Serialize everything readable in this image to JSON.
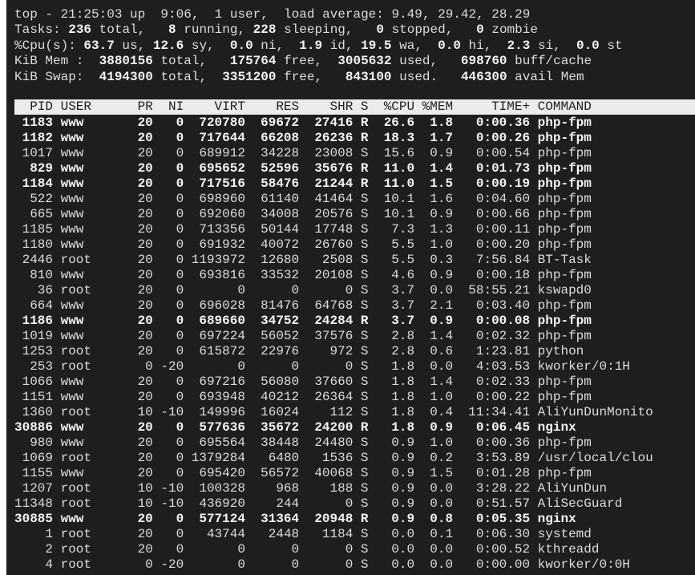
{
  "summary": {
    "line1": "top - 21:25:03 up  9:06,  1 user,  load average: 9.49, 29.42, 28.29",
    "line2": [
      [
        "Tasks: ",
        0
      ],
      [
        "236",
        1
      ],
      [
        " total,   ",
        0
      ],
      [
        "8",
        1
      ],
      [
        " running, ",
        0
      ],
      [
        "228",
        1
      ],
      [
        " sleeping,   ",
        0
      ],
      [
        "0",
        1
      ],
      [
        " stopped,   ",
        0
      ],
      [
        "0",
        1
      ],
      [
        " zombie",
        0
      ]
    ],
    "line3": [
      [
        "%Cpu(s): ",
        0
      ],
      [
        "63.7",
        1
      ],
      [
        " us, ",
        0
      ],
      [
        "12.6",
        1
      ],
      [
        " sy,  ",
        0
      ],
      [
        "0.0",
        1
      ],
      [
        " ni,  ",
        0
      ],
      [
        "1.9",
        1
      ],
      [
        " id, ",
        0
      ],
      [
        "19.5",
        1
      ],
      [
        " wa,  ",
        0
      ],
      [
        "0.0",
        1
      ],
      [
        " hi,  ",
        0
      ],
      [
        "2.3",
        1
      ],
      [
        " si,  ",
        0
      ],
      [
        "0.0",
        1
      ],
      [
        " st",
        0
      ]
    ],
    "line4": [
      [
        "KiB Mem :  ",
        0
      ],
      [
        "3880156",
        1
      ],
      [
        " total,   ",
        0
      ],
      [
        "175764",
        1
      ],
      [
        " free,  ",
        0
      ],
      [
        "3005632",
        1
      ],
      [
        " used,   ",
        0
      ],
      [
        "698760",
        1
      ],
      [
        " buff/cache",
        0
      ]
    ],
    "line5": [
      [
        "KiB Swap:  ",
        0
      ],
      [
        "4194300",
        1
      ],
      [
        " total,  ",
        0
      ],
      [
        "3351200",
        1
      ],
      [
        " free,   ",
        0
      ],
      [
        "843100",
        1
      ],
      [
        " used.   ",
        0
      ],
      [
        "446300",
        1
      ],
      [
        " avail Mem",
        0
      ]
    ]
  },
  "columns": [
    "PID",
    "USER",
    "PR",
    "NI",
    "VIRT",
    "RES",
    "SHR",
    "S",
    "%CPU",
    "%MEM",
    "TIME+",
    "COMMAND"
  ],
  "processes": [
    [
      "1183",
      "www",
      "20",
      "0",
      "720780",
      "69672",
      "27416",
      "R",
      "26.6",
      "1.8",
      "0:00.36",
      "php-fpm"
    ],
    [
      "1182",
      "www",
      "20",
      "0",
      "717644",
      "66208",
      "26236",
      "R",
      "18.3",
      "1.7",
      "0:00.26",
      "php-fpm"
    ],
    [
      "1017",
      "www",
      "20",
      "0",
      "689912",
      "34228",
      "23008",
      "S",
      "15.6",
      "0.9",
      "0:00.54",
      "php-fpm"
    ],
    [
      "829",
      "www",
      "20",
      "0",
      "695652",
      "52596",
      "35676",
      "R",
      "11.0",
      "1.4",
      "0:01.73",
      "php-fpm"
    ],
    [
      "1184",
      "www",
      "20",
      "0",
      "717516",
      "58476",
      "21244",
      "R",
      "11.0",
      "1.5",
      "0:00.19",
      "php-fpm"
    ],
    [
      "522",
      "www",
      "20",
      "0",
      "698960",
      "61140",
      "41464",
      "S",
      "10.1",
      "1.6",
      "0:04.60",
      "php-fpm"
    ],
    [
      "665",
      "www",
      "20",
      "0",
      "692060",
      "34008",
      "20576",
      "S",
      "10.1",
      "0.9",
      "0:00.66",
      "php-fpm"
    ],
    [
      "1185",
      "www",
      "20",
      "0",
      "713356",
      "50144",
      "17748",
      "S",
      "7.3",
      "1.3",
      "0:00.11",
      "php-fpm"
    ],
    [
      "1180",
      "www",
      "20",
      "0",
      "691932",
      "40072",
      "26760",
      "S",
      "5.5",
      "1.0",
      "0:00.20",
      "php-fpm"
    ],
    [
      "2446",
      "root",
      "20",
      "0",
      "1193972",
      "12680",
      "2508",
      "S",
      "5.5",
      "0.3",
      "7:56.84",
      "BT-Task"
    ],
    [
      "810",
      "www",
      "20",
      "0",
      "693816",
      "33532",
      "20108",
      "S",
      "4.6",
      "0.9",
      "0:00.18",
      "php-fpm"
    ],
    [
      "36",
      "root",
      "20",
      "0",
      "0",
      "0",
      "0",
      "S",
      "3.7",
      "0.0",
      "58:55.21",
      "kswapd0"
    ],
    [
      "664",
      "www",
      "20",
      "0",
      "696028",
      "81476",
      "64768",
      "S",
      "3.7",
      "2.1",
      "0:03.40",
      "php-fpm"
    ],
    [
      "1186",
      "www",
      "20",
      "0",
      "689660",
      "34752",
      "24284",
      "R",
      "3.7",
      "0.9",
      "0:00.08",
      "php-fpm"
    ],
    [
      "1019",
      "www",
      "20",
      "0",
      "697224",
      "56052",
      "37576",
      "S",
      "2.8",
      "1.4",
      "0:02.32",
      "php-fpm"
    ],
    [
      "1253",
      "root",
      "20",
      "0",
      "615872",
      "22976",
      "972",
      "S",
      "2.8",
      "0.6",
      "1:23.81",
      "python"
    ],
    [
      "253",
      "root",
      "0",
      "-20",
      "0",
      "0",
      "0",
      "S",
      "1.8",
      "0.0",
      "4:03.53",
      "kworker/0:1H"
    ],
    [
      "1066",
      "www",
      "20",
      "0",
      "697216",
      "56080",
      "37660",
      "S",
      "1.8",
      "1.4",
      "0:02.33",
      "php-fpm"
    ],
    [
      "1151",
      "www",
      "20",
      "0",
      "693948",
      "40212",
      "26364",
      "S",
      "1.8",
      "1.0",
      "0:00.22",
      "php-fpm"
    ],
    [
      "1360",
      "root",
      "10",
      "-10",
      "149996",
      "16024",
      "112",
      "S",
      "1.8",
      "0.4",
      "11:34.41",
      "AliYunDunMonito"
    ],
    [
      "30886",
      "www",
      "20",
      "0",
      "577636",
      "35672",
      "24200",
      "R",
      "1.8",
      "0.9",
      "0:06.45",
      "nginx"
    ],
    [
      "980",
      "www",
      "20",
      "0",
      "695564",
      "38448",
      "24480",
      "S",
      "0.9",
      "1.0",
      "0:00.36",
      "php-fpm"
    ],
    [
      "1069",
      "root",
      "20",
      "0",
      "1379284",
      "6480",
      "1536",
      "S",
      "0.9",
      "0.2",
      "3:53.89",
      "/usr/local/clou"
    ],
    [
      "1155",
      "www",
      "20",
      "0",
      "695420",
      "56572",
      "40068",
      "S",
      "0.9",
      "1.5",
      "0:01.28",
      "php-fpm"
    ],
    [
      "1207",
      "root",
      "10",
      "-10",
      "100328",
      "968",
      "188",
      "S",
      "0.9",
      "0.0",
      "3:28.22",
      "AliYunDun"
    ],
    [
      "11348",
      "root",
      "10",
      "-10",
      "436920",
      "244",
      "0",
      "S",
      "0.9",
      "0.0",
      "0:51.57",
      "AliSecGuard"
    ],
    [
      "30885",
      "www",
      "20",
      "0",
      "577124",
      "31364",
      "20948",
      "R",
      "0.9",
      "0.8",
      "0:05.35",
      "nginx"
    ],
    [
      "1",
      "root",
      "20",
      "0",
      "43744",
      "2448",
      "1184",
      "S",
      "0.0",
      "0.1",
      "0:06.30",
      "systemd"
    ],
    [
      "2",
      "root",
      "20",
      "0",
      "0",
      "0",
      "0",
      "S",
      "0.0",
      "0.0",
      "0:00.52",
      "kthreadd"
    ],
    [
      "4",
      "root",
      "0",
      "-20",
      "0",
      "0",
      "0",
      "S",
      "0.0",
      "0.0",
      "0:00.00",
      "kworker/0:0H"
    ]
  ],
  "colors": {
    "background": "#1e1e1e",
    "text": "#dcdcdc",
    "header_bar": "#ececec"
  }
}
